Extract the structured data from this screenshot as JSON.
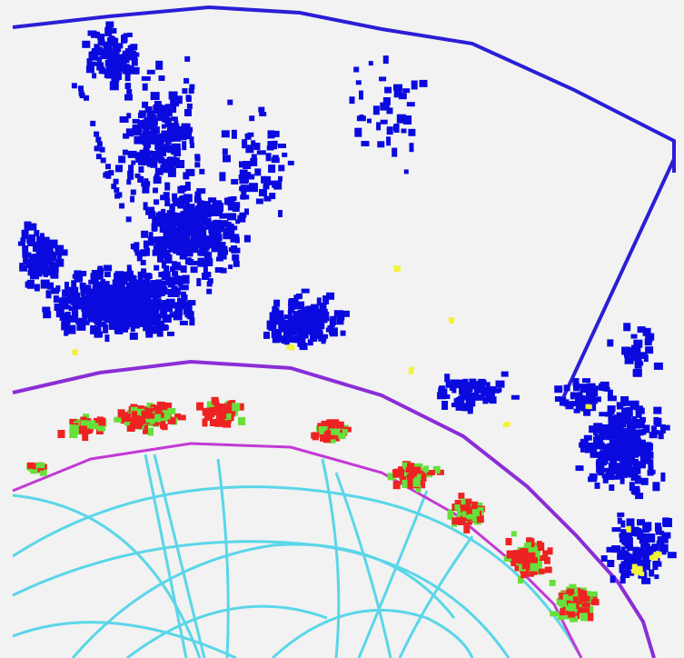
{
  "display": {
    "background": "#f2f2f2",
    "colors": {
      "hadronic_hits": "#0a0adf",
      "outline": "#2a1ed6",
      "em_hits_red": "#ee2222",
      "em_hits_green": "#66e03a",
      "yellow_hits": "#f2f23a",
      "boundary": "#c23ad4",
      "tracks": "#5ad6e8"
    }
  },
  "legend": []
}
